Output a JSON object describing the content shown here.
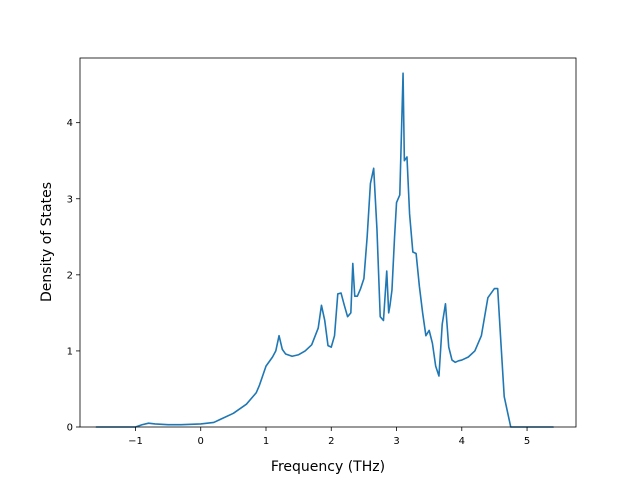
{
  "chart_data": {
    "type": "line",
    "title": "",
    "xlabel": "Frequency (THz)",
    "ylabel": "Density of States",
    "xlim": [
      -1.85,
      5.75
    ],
    "ylim": [
      0,
      4.85
    ],
    "xticks": [
      -1,
      0,
      1,
      2,
      3,
      4,
      5
    ],
    "xtick_labels": [
      "−1",
      "0",
      "1",
      "2",
      "3",
      "4",
      "5"
    ],
    "yticks": [
      0,
      1,
      2,
      3,
      4
    ],
    "ytick_labels": [
      "0",
      "1",
      "2",
      "3",
      "4"
    ],
    "grid": false,
    "legend": false,
    "series": [
      {
        "color": "#1f77b4",
        "x": [
          -1.6,
          -1.0,
          -0.9,
          -0.8,
          -0.7,
          -0.5,
          -0.3,
          0.0,
          0.2,
          0.3,
          0.5,
          0.7,
          0.85,
          0.9,
          1.0,
          1.1,
          1.15,
          1.2,
          1.25,
          1.3,
          1.4,
          1.5,
          1.6,
          1.7,
          1.8,
          1.85,
          1.9,
          1.95,
          2.0,
          2.05,
          2.1,
          2.15,
          2.2,
          2.25,
          2.3,
          2.33,
          2.36,
          2.4,
          2.45,
          2.5,
          2.55,
          2.6,
          2.65,
          2.7,
          2.75,
          2.8,
          2.85,
          2.88,
          2.9,
          2.93,
          2.97,
          3.0,
          3.05,
          3.1,
          3.12,
          3.16,
          3.2,
          3.25,
          3.3,
          3.35,
          3.4,
          3.45,
          3.5,
          3.55,
          3.6,
          3.65,
          3.7,
          3.75,
          3.8,
          3.85,
          3.9,
          3.95,
          4.0,
          4.1,
          4.2,
          4.3,
          4.4,
          4.5,
          4.55,
          4.6,
          4.65,
          4.7,
          4.75,
          4.8,
          4.85,
          5.0,
          5.4
        ],
        "y": [
          0.0,
          0.0,
          0.03,
          0.05,
          0.04,
          0.03,
          0.03,
          0.04,
          0.06,
          0.1,
          0.18,
          0.3,
          0.45,
          0.55,
          0.8,
          0.92,
          1.0,
          1.2,
          1.02,
          0.96,
          0.93,
          0.95,
          1.0,
          1.08,
          1.3,
          1.6,
          1.4,
          1.07,
          1.05,
          1.2,
          1.75,
          1.76,
          1.6,
          1.45,
          1.5,
          2.15,
          1.72,
          1.72,
          1.82,
          1.95,
          2.5,
          3.2,
          3.4,
          2.6,
          1.45,
          1.4,
          2.05,
          1.5,
          1.6,
          1.8,
          2.5,
          2.95,
          3.05,
          4.65,
          3.5,
          3.55,
          2.8,
          2.3,
          2.28,
          1.85,
          1.5,
          1.2,
          1.27,
          1.1,
          0.8,
          0.67,
          1.35,
          1.62,
          1.05,
          0.88,
          0.85,
          0.87,
          0.88,
          0.92,
          1.0,
          1.2,
          1.7,
          1.82,
          1.82,
          1.1,
          0.4,
          0.2,
          0.0,
          0.0,
          0.0,
          0.0,
          0.0
        ]
      }
    ]
  }
}
